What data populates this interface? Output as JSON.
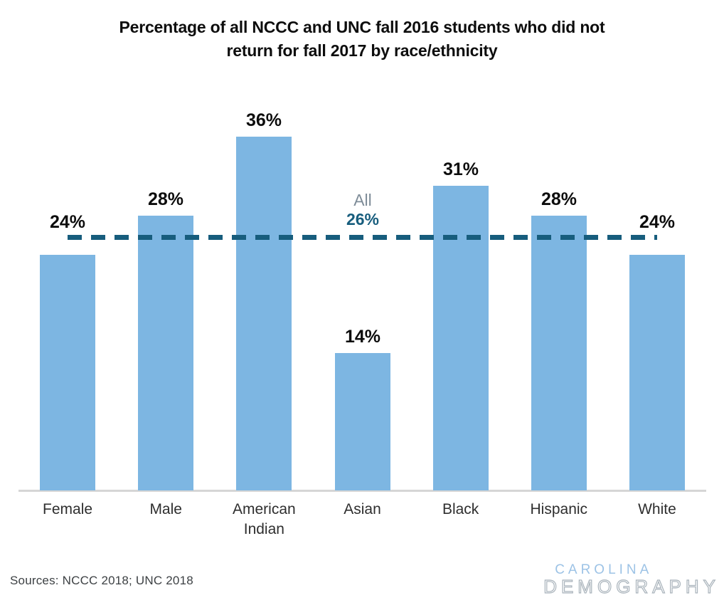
{
  "title_lines": [
    "Percentage of all NCCC and UNC fall 2016 students who did not",
    "return for fall 2017 by race/ethnicity"
  ],
  "source_note": "Sources: NCCC 2018; UNC 2018",
  "logo": {
    "line1": "CAROLINA",
    "line2": "DEMOGRAPHY"
  },
  "colors": {
    "bar": "#7db6e2",
    "reference_line": "#175d7d",
    "all_label_word": "#7e8c98",
    "axis_line": "#d6d6d6",
    "ink": "#0d0d0d",
    "logo_blue": "#9dc3e6",
    "logo_gray": "#a9b3bb"
  },
  "chart_data": {
    "type": "bar",
    "title": "Percentage of all NCCC and UNC fall 2016 students who did not return for fall 2017 by race/ethnicity",
    "categories": [
      "Female",
      "Male",
      "American Indian",
      "Asian",
      "Black",
      "Hispanic",
      "White"
    ],
    "values": [
      24,
      28,
      36,
      14,
      31,
      28,
      24
    ],
    "data_labels": [
      "24%",
      "28%",
      "36%",
      "14%",
      "31%",
      "28%",
      "24%"
    ],
    "reference_line": {
      "value": 26,
      "label_line1": "All",
      "label_line2": "26%"
    },
    "xlabel": "",
    "ylabel": "",
    "ylim": [
      0,
      48
    ],
    "grid": false,
    "legend": false,
    "bar_color": "#7db6e2",
    "reference_line_color": "#175d7d"
  }
}
